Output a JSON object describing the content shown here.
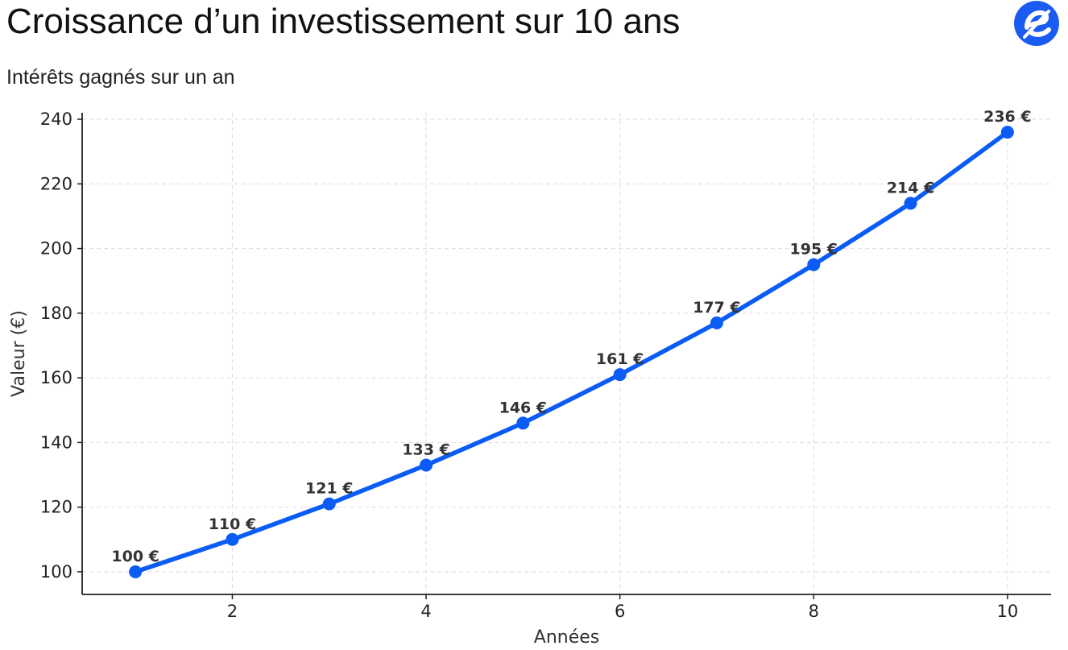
{
  "header": {
    "title": "Croissance d’un investissement sur 10 ans",
    "subtitle": "Intérêts gagnés sur un an",
    "logo_icon": "brand-e-logo-icon"
  },
  "colors": {
    "line": "#0b5cf5",
    "grid": "#e4d6ec",
    "logo": "#1a5cf2",
    "axis": "#222222"
  },
  "chart_data": {
    "type": "line",
    "title": "Croissance d’un investissement sur 10 ans",
    "subtitle": "Intérêts gagnés sur un an",
    "xlabel": "Années",
    "ylabel": "Valeur (€)",
    "xlim": [
      0.45,
      10.45
    ],
    "ylim": [
      93,
      242
    ],
    "x_ticks": [
      2,
      4,
      6,
      8,
      10
    ],
    "y_ticks": [
      100,
      120,
      140,
      160,
      180,
      200,
      220,
      240
    ],
    "grid": true,
    "x": [
      1,
      2,
      3,
      4,
      5,
      6,
      7,
      8,
      9,
      10
    ],
    "series": [
      {
        "values": [
          100,
          110,
          121,
          133,
          146,
          161,
          177,
          195,
          214,
          236
        ],
        "data_labels": [
          "100 €",
          "110 €",
          "121 €",
          "133 €",
          "146 €",
          "161 €",
          "177 €",
          "195 €",
          "214 €",
          "236 €"
        ]
      }
    ]
  }
}
